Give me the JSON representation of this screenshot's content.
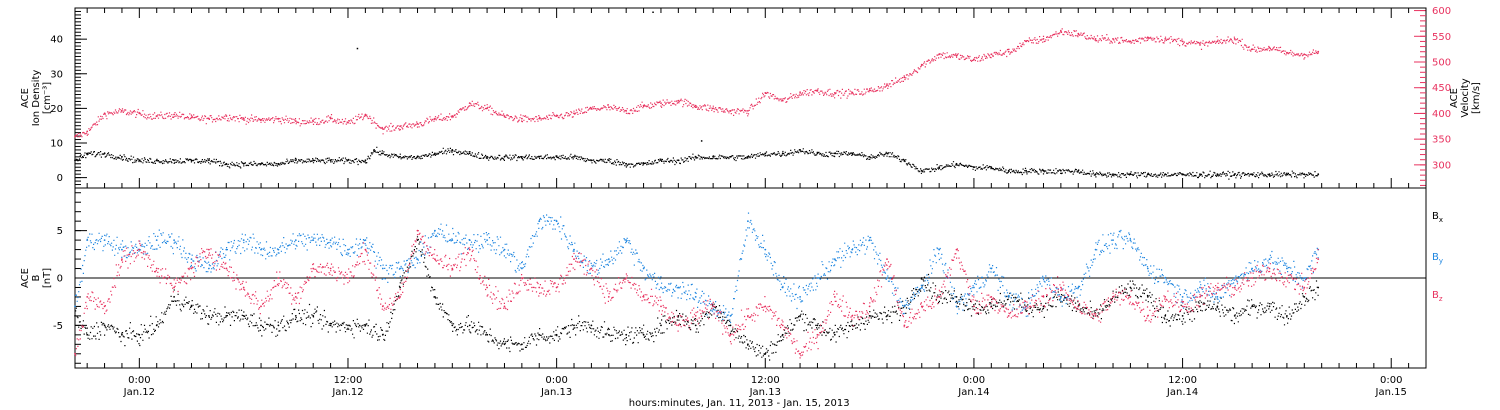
{
  "colors": {
    "black": "#000000",
    "pink": "#e8325f",
    "blue": "#1f86e0"
  },
  "chart_data": [
    {
      "type": "scatter",
      "panel": "top",
      "x_units": "hours since Jan 11 2013 00:00",
      "xlim": [
        20.3,
        98
      ],
      "left_axis": {
        "label_lines": [
          "ACE",
          "Ion Density",
          "[cm⁻³]"
        ],
        "ylim": [
          -3,
          49
        ],
        "ticks": [
          0,
          10,
          20,
          30,
          40
        ]
      },
      "right_axis": {
        "label_lines": [
          "ACE",
          "Velocity",
          "[km/s]"
        ],
        "ylim": [
          255,
          605
        ],
        "ticks": [
          300,
          350,
          400,
          450,
          500,
          550,
          600
        ]
      },
      "series": [
        {
          "axis": "left",
          "color": "black",
          "x": [
            20.3,
            21,
            22,
            23,
            24,
            25,
            26,
            27,
            28,
            29,
            30,
            31,
            32,
            33,
            34,
            35,
            36,
            37,
            37.5,
            38,
            39,
            40,
            41,
            42,
            43,
            44,
            45,
            46,
            47,
            48,
            49,
            50,
            51,
            52,
            53,
            54,
            55,
            56,
            57,
            58,
            59,
            60,
            61,
            62,
            63,
            64,
            65,
            66,
            67,
            68,
            69,
            70,
            71,
            72,
            73,
            74,
            75,
            76,
            77,
            78,
            79,
            80,
            81,
            82,
            83,
            84,
            85,
            86,
            87,
            88,
            89,
            90,
            91,
            91.8
          ],
          "y": [
            5,
            7,
            7,
            6,
            5,
            5,
            5,
            5,
            5,
            4,
            4,
            4,
            4,
            5,
            5,
            5,
            5,
            5,
            8,
            7,
            6,
            6,
            7,
            8,
            7,
            6,
            6,
            6,
            6,
            6,
            6,
            5,
            5,
            4,
            4,
            5,
            5,
            6,
            6,
            6,
            6,
            7,
            7,
            8,
            7,
            7,
            7,
            6,
            7,
            5,
            2,
            3,
            4,
            3,
            3,
            2,
            2,
            2,
            2,
            2,
            1,
            1,
            1,
            1,
            1,
            1,
            1,
            1,
            1,
            1,
            1,
            1,
            1,
            1
          ]
        },
        {
          "axis": "right",
          "color": "pink",
          "x": [
            20.3,
            21,
            22,
            23,
            24,
            25,
            26,
            27,
            28,
            29,
            30,
            31,
            32,
            33,
            34,
            35,
            36,
            37,
            38,
            39,
            40,
            41,
            42,
            43,
            44,
            45,
            46,
            47,
            48,
            49,
            50,
            51,
            52,
            53,
            54,
            55,
            56,
            57,
            58,
            59,
            60,
            61,
            62,
            63,
            64,
            65,
            66,
            67,
            68,
            69,
            70,
            71,
            72,
            73,
            74,
            75,
            76,
            77,
            78,
            79,
            80,
            81,
            82,
            83,
            84,
            85,
            86,
            87,
            88,
            89,
            90,
            91,
            91.8
          ],
          "y": [
            355,
            365,
            400,
            405,
            400,
            395,
            398,
            392,
            390,
            395,
            390,
            388,
            390,
            385,
            385,
            390,
            382,
            398,
            370,
            375,
            380,
            390,
            395,
            420,
            410,
            395,
            390,
            390,
            395,
            400,
            410,
            412,
            405,
            415,
            420,
            425,
            415,
            410,
            405,
            405,
            440,
            425,
            440,
            445,
            440,
            440,
            445,
            455,
            470,
            495,
            515,
            512,
            505,
            515,
            520,
            540,
            545,
            560,
            555,
            545,
            545,
            540,
            548,
            545,
            540,
            535,
            540,
            545,
            525,
            528,
            518,
            515,
            520
          ]
        },
        {
          "axis": "left",
          "color": "black",
          "kind": "outliers",
          "x": [
            36.5,
            53.5,
            56.3
          ],
          "y": [
            37.5,
            48,
            10.8
          ]
        }
      ]
    },
    {
      "type": "scatter",
      "panel": "bottom",
      "x_units": "hours since Jan 11 2013 00:00",
      "xlim": [
        20.3,
        98
      ],
      "ylabel_lines": [
        "ACE",
        "B",
        "[nT]"
      ],
      "ylim": [
        -9.5,
        9.5
      ],
      "ticks": [
        -5,
        0,
        5
      ],
      "zero_line": true,
      "series": [
        {
          "name": "Bx",
          "color": "black",
          "x": [
            20.3,
            21,
            22,
            23,
            24,
            25,
            26,
            27,
            28,
            29,
            30,
            31,
            32,
            33,
            34,
            35,
            36,
            37,
            38,
            39,
            40,
            41,
            42,
            43,
            44,
            45,
            46,
            47,
            48,
            49,
            50,
            51,
            52,
            53,
            54,
            55,
            56,
            57,
            58,
            59,
            60,
            61,
            62,
            63,
            64,
            65,
            66,
            67,
            68,
            69,
            70,
            71,
            72,
            73,
            74,
            75,
            76,
            77,
            78,
            79,
            80,
            81,
            82,
            83,
            84,
            85,
            86,
            87,
            88,
            89,
            90,
            91,
            91.8
          ],
          "y": [
            -4,
            -6,
            -5,
            -6,
            -6,
            -5,
            -2,
            -3,
            -4,
            -4,
            -4,
            -5,
            -5,
            -4,
            -4,
            -5,
            -5,
            -5,
            -6,
            -1,
            4,
            -2,
            -5,
            -5,
            -6,
            -7,
            -7,
            -6,
            -6,
            -5,
            -5,
            -6,
            -6,
            -6,
            -5,
            -4,
            -5,
            -3,
            -5,
            -7,
            -8,
            -6,
            -4,
            -5,
            -6,
            -5,
            -4,
            -4,
            -3,
            0,
            -2,
            -2,
            -3,
            -3,
            -2,
            -3,
            -3,
            -2,
            -3,
            -4,
            -2,
            -1,
            -2,
            -4,
            -4,
            -3,
            -3,
            -4,
            -3,
            -3,
            -4,
            -2,
            -1
          ]
        },
        {
          "name": "By",
          "color": "blue",
          "x": [
            20.3,
            21,
            22,
            23,
            24,
            25,
            26,
            27,
            28,
            29,
            30,
            31,
            32,
            33,
            34,
            35,
            36,
            37,
            38,
            39,
            40,
            41,
            42,
            43,
            44,
            45,
            46,
            47,
            48,
            49,
            50,
            51,
            52,
            53,
            54,
            55,
            56,
            57,
            58,
            59,
            60,
            61,
            62,
            63,
            64,
            65,
            66,
            67,
            68,
            69,
            70,
            71,
            72,
            73,
            74,
            75,
            76,
            77,
            78,
            79,
            80,
            81,
            82,
            83,
            84,
            85,
            86,
            87,
            88,
            89,
            90,
            91,
            91.8
          ],
          "y": [
            -3,
            4,
            4,
            3,
            3,
            4,
            4,
            2,
            1,
            3,
            4,
            3,
            3,
            4,
            4,
            4,
            3,
            4,
            1,
            1,
            2,
            5,
            4,
            4,
            4,
            3,
            1,
            6,
            6,
            3,
            1,
            2,
            4,
            1,
            -1,
            -1,
            -2,
            -3,
            -4,
            6,
            3,
            -1,
            -2,
            0,
            2,
            3,
            4,
            0,
            -3,
            -1,
            3,
            -3,
            -1,
            1,
            -2,
            -3,
            0,
            -2,
            -1,
            3,
            4,
            4,
            1,
            0,
            -2,
            -1,
            -2,
            0,
            1,
            2,
            1,
            0,
            3
          ]
        },
        {
          "name": "Bz",
          "color": "pink",
          "x": [
            20.3,
            21,
            22,
            23,
            24,
            25,
            26,
            27,
            28,
            29,
            30,
            31,
            32,
            33,
            34,
            35,
            36,
            37,
            38,
            39,
            40,
            41,
            42,
            43,
            44,
            45,
            46,
            47,
            48,
            49,
            50,
            51,
            52,
            53,
            54,
            55,
            56,
            57,
            58,
            59,
            60,
            61,
            62,
            63,
            64,
            65,
            66,
            67,
            68,
            69,
            70,
            71,
            72,
            73,
            74,
            75,
            76,
            77,
            78,
            79,
            80,
            81,
            82,
            83,
            84,
            85,
            86,
            87,
            88,
            89,
            90,
            91,
            91.8
          ],
          "y": [
            -8,
            -2,
            -3,
            2,
            3,
            1,
            -1,
            1,
            3,
            1,
            -1,
            -3,
            0,
            -2,
            1,
            1,
            0,
            3,
            -3,
            -2,
            5,
            2,
            1,
            3,
            -1,
            -3,
            0,
            -1,
            -1,
            2,
            1,
            -2,
            0,
            -2,
            -3,
            -5,
            -4,
            -3,
            -6,
            -4,
            -3,
            -5,
            -8,
            -6,
            -2,
            -4,
            -3,
            2,
            -5,
            -3,
            -2,
            3,
            -3,
            -2,
            -4,
            -3,
            -2,
            -1,
            -3,
            -4,
            -2,
            -2,
            -4,
            -2,
            -3,
            -2,
            -1,
            -1,
            0,
            1,
            0,
            -1,
            2
          ]
        }
      ],
      "legend": [
        {
          "label": "B",
          "sub": "x",
          "color": "black"
        },
        {
          "label": "B",
          "sub": "y",
          "color": "blue"
        },
        {
          "label": "B",
          "sub": "z",
          "color": "pink"
        }
      ]
    }
  ],
  "x_axis": {
    "ticks": [
      {
        "hours": 24,
        "time": "0:00",
        "date": "Jan.12"
      },
      {
        "hours": 36,
        "time": "12:00",
        "date": "Jan.12"
      },
      {
        "hours": 48,
        "time": "0:00",
        "date": "Jan.13"
      },
      {
        "hours": 60,
        "time": "12:00",
        "date": "Jan.13"
      },
      {
        "hours": 72,
        "time": "0:00",
        "date": "Jan.14"
      },
      {
        "hours": 84,
        "time": "12:00",
        "date": "Jan.14"
      },
      {
        "hours": 96,
        "time": "0:00",
        "date": "Jan.15"
      }
    ],
    "title": "hours:minutes, Jan. 11, 2013 - Jan. 15, 2013"
  }
}
